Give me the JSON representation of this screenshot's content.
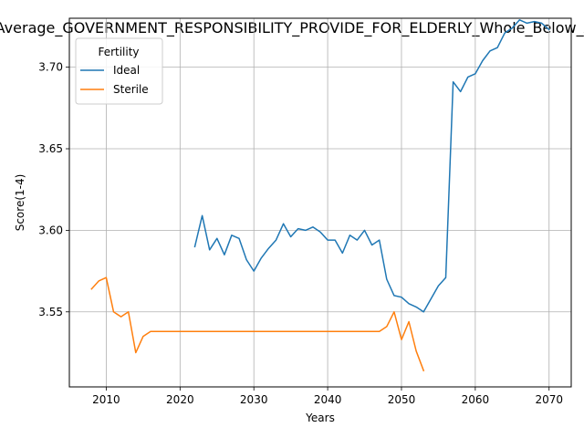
{
  "chart_data": {
    "type": "line",
    "title": "Average_GOVERNMENT_RESPONSIBILITY_PROVIDE_FOR_ELDERLY_Whole_Below_Average",
    "xlabel": "Years",
    "ylabel": "Score(1-4)",
    "xlim": [
      2005,
      2073
    ],
    "ylim": [
      3.504,
      3.73
    ],
    "xticks": [
      2010,
      2020,
      2030,
      2040,
      2050,
      2060,
      2070
    ],
    "yticks": [
      3.55,
      3.6,
      3.65,
      3.7
    ],
    "ytick_labels": [
      "3.55",
      "3.60",
      "3.65",
      "3.70"
    ],
    "grid": true,
    "legend": {
      "title": "Fertility",
      "position": "top-left"
    },
    "series": [
      {
        "name": "Ideal",
        "color": "#1f77b4",
        "x": [
          2022,
          2023,
          2024,
          2025,
          2026,
          2027,
          2028,
          2029,
          2030,
          2031,
          2032,
          2033,
          2034,
          2035,
          2036,
          2037,
          2038,
          2039,
          2040,
          2041,
          2042,
          2043,
          2044,
          2045,
          2046,
          2047,
          2048,
          2049,
          2050,
          2051,
          2052,
          2053,
          2054,
          2055,
          2056,
          2057,
          2058,
          2059,
          2060,
          2061,
          2062,
          2063,
          2064,
          2065,
          2066,
          2067,
          2068,
          2069,
          2070
        ],
        "y": [
          3.59,
          3.609,
          3.588,
          3.595,
          3.585,
          3.597,
          3.595,
          3.582,
          3.575,
          3.583,
          3.589,
          3.594,
          3.604,
          3.596,
          3.601,
          3.6,
          3.602,
          3.599,
          3.594,
          3.594,
          3.586,
          3.597,
          3.594,
          3.6,
          3.591,
          3.594,
          3.57,
          3.56,
          3.559,
          3.555,
          3.553,
          3.55,
          3.558,
          3.566,
          3.571,
          3.691,
          3.685,
          3.694,
          3.696,
          3.704,
          3.71,
          3.712,
          3.721,
          3.724,
          3.729,
          3.727,
          3.728,
          3.727,
          3.723
        ]
      },
      {
        "name": "Sterile",
        "color": "#ff7f0e",
        "x": [
          2008,
          2009,
          2010,
          2011,
          2012,
          2013,
          2014,
          2015,
          2016,
          2017,
          2018,
          2019,
          2020,
          2021,
          2022,
          2023,
          2024,
          2025,
          2026,
          2027,
          2028,
          2029,
          2030,
          2031,
          2032,
          2033,
          2034,
          2035,
          2036,
          2037,
          2038,
          2039,
          2040,
          2041,
          2042,
          2043,
          2044,
          2045,
          2046,
          2047,
          2048,
          2049,
          2050,
          2051,
          2052,
          2053
        ],
        "y": [
          3.564,
          3.569,
          3.571,
          3.55,
          3.547,
          3.55,
          3.525,
          3.535,
          3.538,
          3.538,
          3.538,
          3.538,
          3.538,
          3.538,
          3.538,
          3.538,
          3.538,
          3.538,
          3.538,
          3.538,
          3.538,
          3.538,
          3.538,
          3.538,
          3.538,
          3.538,
          3.538,
          3.538,
          3.538,
          3.538,
          3.538,
          3.538,
          3.538,
          3.538,
          3.538,
          3.538,
          3.538,
          3.538,
          3.538,
          3.538,
          3.541,
          3.55,
          3.533,
          3.544,
          3.526,
          3.514
        ]
      }
    ]
  }
}
